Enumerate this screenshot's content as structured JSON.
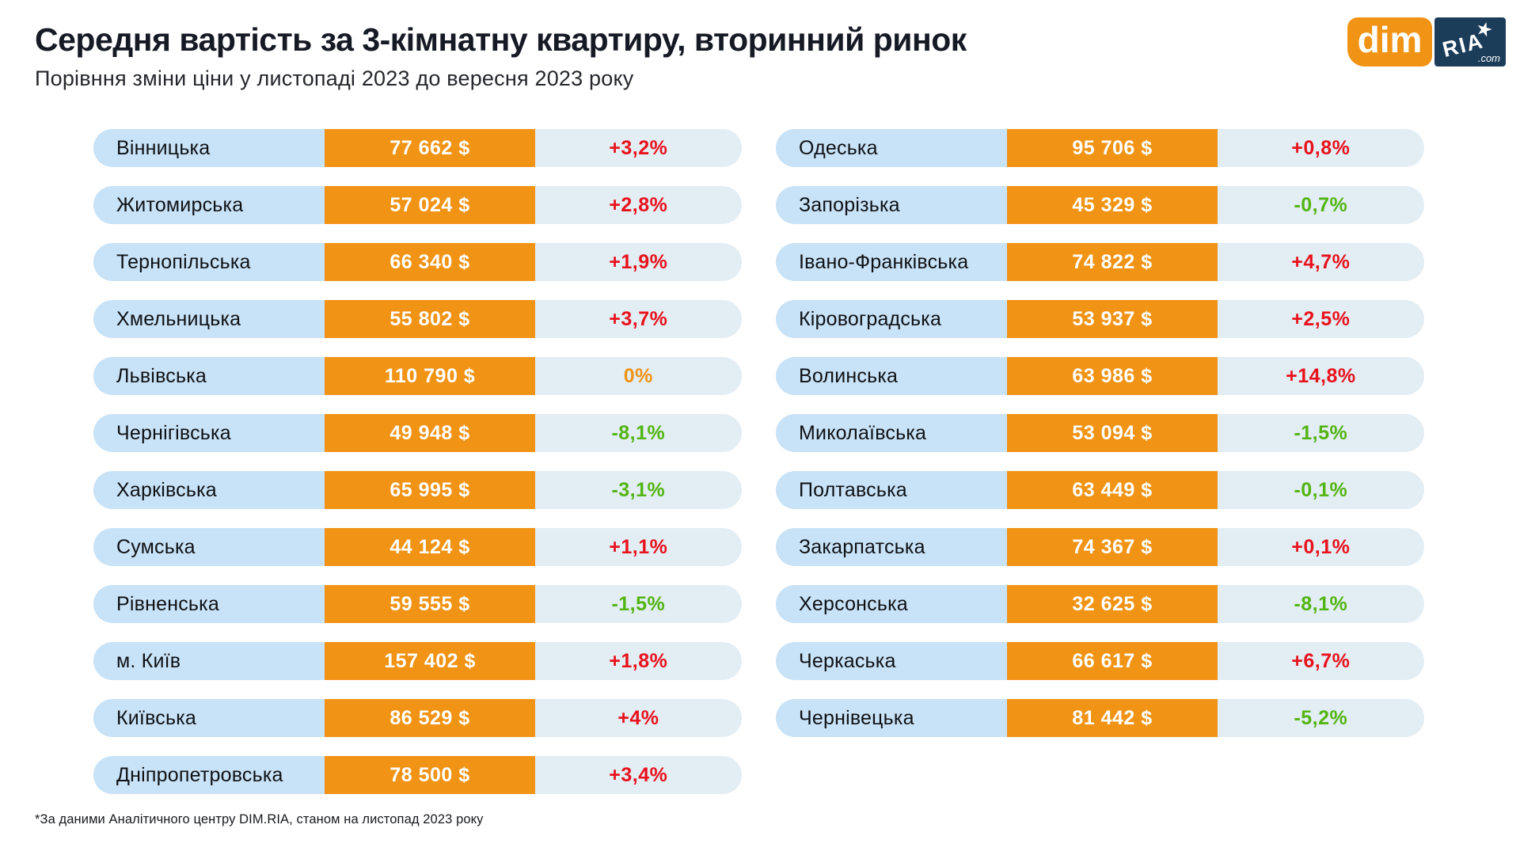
{
  "header": {
    "title": "Середня вартість за 3-кімнатну квартиру, вторинний ринок",
    "subtitle": "Порівння зміни ціни у листопаді 2023 до вересня 2023 року",
    "logo": {
      "dim": "dim",
      "ria": "RIA",
      "com": ".com",
      "star_icon": "star-icon"
    }
  },
  "colors": {
    "accent_orange": "#F19315",
    "region_cell_bg": "#C8E2F7",
    "change_cell_bg": "#E3EDF4",
    "increase_red": "#E8121C",
    "decrease_green": "#52B513",
    "zero_orange": "#F19315",
    "logo_navy": "#1C3D5A",
    "title_dark": "#161A25",
    "background": "#FFFFFF"
  },
  "chart_data": {
    "type": "table",
    "title": "Середня вартість за 3-кімнатну квартиру, вторинний ринок",
    "subtitle": "Порівння зміни ціни у листопаді 2023 до вересня 2023 року",
    "columns": [
      "region",
      "price",
      "change"
    ],
    "left_rows": [
      {
        "region": "Вінницька",
        "price": "77 662 $",
        "price_usd": 77662,
        "change": "+3,2%",
        "change_pct": 3.2,
        "direction": "up"
      },
      {
        "region": "Житомирська",
        "price": "57 024 $",
        "price_usd": 57024,
        "change": "+2,8%",
        "change_pct": 2.8,
        "direction": "up"
      },
      {
        "region": "Тернопільська",
        "price": "66 340 $",
        "price_usd": 66340,
        "change": "+1,9%",
        "change_pct": 1.9,
        "direction": "up"
      },
      {
        "region": "Хмельницька",
        "price": "55 802 $",
        "price_usd": 55802,
        "change": "+3,7%",
        "change_pct": 3.7,
        "direction": "up"
      },
      {
        "region": "Львівська",
        "price": "110 790 $",
        "price_usd": 110790,
        "change": "0%",
        "change_pct": 0,
        "direction": "zero"
      },
      {
        "region": "Чернігівська",
        "price": "49 948 $",
        "price_usd": 49948,
        "change": "-8,1%",
        "change_pct": -8.1,
        "direction": "down"
      },
      {
        "region": "Харківська",
        "price": "65 995 $",
        "price_usd": 65995,
        "change": "-3,1%",
        "change_pct": -3.1,
        "direction": "down"
      },
      {
        "region": "Сумська",
        "price": "44 124 $",
        "price_usd": 44124,
        "change": "+1,1%",
        "change_pct": 1.1,
        "direction": "up"
      },
      {
        "region": "Рівненська",
        "price": "59 555 $",
        "price_usd": 59555,
        "change": "-1,5%",
        "change_pct": -1.5,
        "direction": "down"
      },
      {
        "region": "м. Київ",
        "price": "157 402 $",
        "price_usd": 157402,
        "change": "+1,8%",
        "change_pct": 1.8,
        "direction": "up"
      },
      {
        "region": "Київська",
        "price": "86 529 $",
        "price_usd": 86529,
        "change": "+4%",
        "change_pct": 4,
        "direction": "up"
      },
      {
        "region": "Дніпропетровська",
        "price": "78 500 $",
        "price_usd": 78500,
        "change": "+3,4%",
        "change_pct": 3.4,
        "direction": "up"
      }
    ],
    "right_rows": [
      {
        "region": "Одеська",
        "price": "95 706 $",
        "price_usd": 95706,
        "change": "+0,8%",
        "change_pct": 0.8,
        "direction": "up"
      },
      {
        "region": "Запорізька",
        "price": "45 329 $",
        "price_usd": 45329,
        "change": "-0,7%",
        "change_pct": -0.7,
        "direction": "down"
      },
      {
        "region": "Івано-Франківська",
        "price": "74 822 $",
        "price_usd": 74822,
        "change": "+4,7%",
        "change_pct": 4.7,
        "direction": "up"
      },
      {
        "region": "Кіровоградська",
        "price": "53 937 $",
        "price_usd": 53937,
        "change": "+2,5%",
        "change_pct": 2.5,
        "direction": "up"
      },
      {
        "region": "Волинська",
        "price": "63 986 $",
        "price_usd": 63986,
        "change": "+14,8%",
        "change_pct": 14.8,
        "direction": "up"
      },
      {
        "region": "Миколаївська",
        "price": "53 094 $",
        "price_usd": 53094,
        "change": "-1,5%",
        "change_pct": -1.5,
        "direction": "down"
      },
      {
        "region": "Полтавська",
        "price": "63 449 $",
        "price_usd": 63449,
        "change": "-0,1%",
        "change_pct": -0.1,
        "direction": "down"
      },
      {
        "region": "Закарпатська",
        "price": "74 367 $",
        "price_usd": 74367,
        "change": "+0,1%",
        "change_pct": 0.1,
        "direction": "up"
      },
      {
        "region": "Херсонська",
        "price": "32 625 $",
        "price_usd": 32625,
        "change": "-8,1%",
        "change_pct": -8.1,
        "direction": "down"
      },
      {
        "region": "Черкаська",
        "price": "66 617 $",
        "price_usd": 66617,
        "change": "+6,7%",
        "change_pct": 6.7,
        "direction": "up"
      },
      {
        "region": "Чернівецька",
        "price": "81 442 $",
        "price_usd": 81442,
        "change": "-5,2%",
        "change_pct": -5.2,
        "direction": "down"
      }
    ]
  },
  "footer": {
    "note": "*За даними Аналітичного центру DIM.RIA, станом на листопад 2023 року"
  }
}
